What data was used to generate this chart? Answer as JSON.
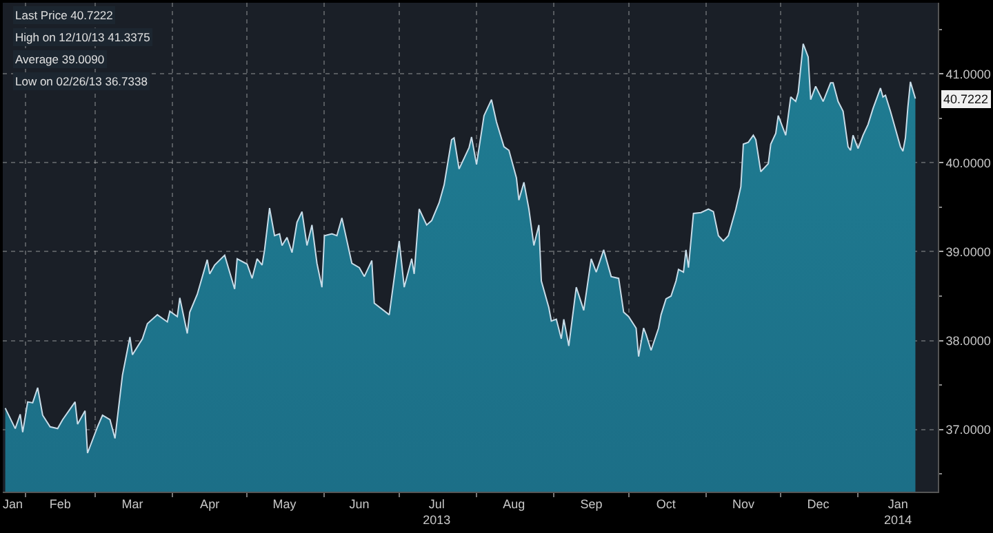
{
  "chart_data": {
    "type": "area",
    "x": [
      "2013-01-24",
      "2013-01-28",
      "2013-01-30",
      "2013-01-31",
      "2013-02-02",
      "2013-02-04",
      "2013-02-06",
      "2013-02-08",
      "2013-02-11",
      "2013-02-14",
      "2013-02-16",
      "2013-02-21",
      "2013-02-22",
      "2013-02-25",
      "2013-02-26",
      "2013-03-02",
      "2013-03-04",
      "2013-03-07",
      "2013-03-09",
      "2013-03-12",
      "2013-03-15",
      "2013-03-16",
      "2013-03-20",
      "2013-03-22",
      "2013-03-26",
      "2013-03-30",
      "2013-03-31",
      "2013-04-03",
      "2013-04-04",
      "2013-04-07",
      "2013-04-08",
      "2013-04-11",
      "2013-04-15",
      "2013-04-16",
      "2013-04-18",
      "2013-04-22",
      "2013-04-26",
      "2013-04-27",
      "2013-05-01",
      "2013-05-03",
      "2013-05-05",
      "2013-05-07",
      "2013-05-08",
      "2013-05-10",
      "2013-05-12",
      "2013-05-14",
      "2013-05-15",
      "2013-05-17",
      "2013-05-19",
      "2013-05-21",
      "2013-05-23",
      "2013-05-25",
      "2013-05-27",
      "2013-05-29",
      "2013-05-31",
      "2013-06-01",
      "2013-06-04",
      "2013-06-06",
      "2013-06-08",
      "2013-06-12",
      "2013-06-15",
      "2013-06-17",
      "2013-06-20",
      "2013-06-21",
      "2013-06-27",
      "2013-07-01",
      "2013-07-03",
      "2013-07-06",
      "2013-07-07",
      "2013-07-09",
      "2013-07-12",
      "2013-07-14",
      "2013-07-17",
      "2013-07-19",
      "2013-07-22",
      "2013-07-23",
      "2013-07-25",
      "2013-07-29",
      "2013-07-30",
      "2013-08-01",
      "2013-08-04",
      "2013-08-07",
      "2013-08-09",
      "2013-08-12",
      "2013-08-14",
      "2013-08-17",
      "2013-08-18",
      "2013-08-20",
      "2013-08-22",
      "2013-08-24",
      "2013-08-26",
      "2013-08-27",
      "2013-08-30",
      "2013-08-31",
      "2013-09-02",
      "2013-09-04",
      "2013-09-05",
      "2013-09-07",
      "2013-09-10",
      "2013-09-13",
      "2013-09-16",
      "2013-09-18",
      "2013-09-21",
      "2013-09-24",
      "2013-09-27",
      "2013-09-29",
      "2013-10-01",
      "2013-10-04",
      "2013-10-05",
      "2013-10-07",
      "2013-10-08",
      "2013-10-10",
      "2013-10-13",
      "2013-10-14",
      "2013-10-16",
      "2013-10-18",
      "2013-10-20",
      "2013-10-21",
      "2013-10-23",
      "2013-10-24",
      "2013-10-25",
      "2013-10-27",
      "2013-10-30",
      "2013-11-02",
      "2013-11-04",
      "2013-11-06",
      "2013-11-08",
      "2013-11-10",
      "2013-11-13",
      "2013-11-15",
      "2013-11-16",
      "2013-11-18",
      "2013-11-20",
      "2013-11-21",
      "2013-11-23",
      "2013-11-26",
      "2013-11-27",
      "2013-11-29",
      "2013-11-30",
      "2013-12-03",
      "2013-12-05",
      "2013-12-07",
      "2013-12-08",
      "2013-12-10",
      "2013-12-12",
      "2013-12-13",
      "2013-12-15",
      "2013-12-18",
      "2013-12-21",
      "2013-12-22",
      "2013-12-24",
      "2013-12-26",
      "2013-12-28",
      "2013-12-29",
      "2013-12-30",
      "2014-01-01",
      "2014-01-03",
      "2014-01-05",
      "2014-01-07",
      "2014-01-10",
      "2014-01-11",
      "2014-01-12",
      "2014-01-14",
      "2014-01-16",
      "2014-01-18",
      "2014-01-19",
      "2014-01-20",
      "2014-01-21",
      "2014-01-22",
      "2014-01-24"
    ],
    "series": [
      {
        "color": "#c8dce8",
        "values": [
          37.24,
          37.01,
          37.17,
          36.97,
          37.31,
          37.3,
          37.47,
          37.16,
          37.03,
          37.01,
          37.11,
          37.31,
          37.06,
          37.21,
          36.7338,
          37.03,
          37.16,
          37.11,
          36.9,
          37.61,
          38.04,
          37.84,
          38.02,
          38.19,
          38.29,
          38.21,
          38.33,
          38.27,
          38.48,
          38.08,
          38.32,
          38.52,
          38.91,
          38.75,
          38.85,
          38.96,
          38.58,
          38.92,
          38.86,
          38.7,
          38.92,
          38.85,
          39.02,
          39.49,
          39.18,
          39.2,
          39.07,
          39.16,
          38.99,
          39.33,
          39.45,
          39.07,
          39.3,
          38.87,
          38.6,
          39.18,
          39.2,
          39.18,
          39.38,
          38.87,
          38.82,
          38.72,
          38.9,
          38.42,
          38.29,
          39.12,
          38.6,
          38.92,
          38.75,
          39.48,
          39.3,
          39.35,
          39.55,
          39.75,
          40.26,
          40.28,
          39.93,
          40.17,
          40.29,
          39.98,
          40.53,
          40.71,
          40.46,
          40.18,
          40.14,
          39.83,
          39.58,
          39.78,
          39.48,
          39.07,
          39.3,
          38.67,
          38.37,
          38.22,
          38.24,
          38.02,
          38.24,
          37.94,
          38.6,
          38.34,
          38.92,
          38.77,
          39.02,
          38.72,
          38.7,
          38.32,
          38.27,
          38.14,
          37.82,
          38.14,
          38.07,
          37.89,
          38.14,
          38.29,
          38.47,
          38.5,
          38.67,
          38.8,
          38.77,
          39.02,
          38.82,
          39.43,
          39.44,
          39.48,
          39.45,
          39.18,
          39.12,
          39.18,
          39.48,
          39.73,
          40.21,
          40.23,
          40.31,
          40.26,
          39.9,
          39.99,
          40.21,
          40.33,
          40.53,
          40.31,
          40.74,
          40.69,
          40.79,
          41.3375,
          41.19,
          40.71,
          40.86,
          40.69,
          40.9,
          40.9,
          40.69,
          40.58,
          40.18,
          40.14,
          40.31,
          40.16,
          40.31,
          40.43,
          40.61,
          40.84,
          40.74,
          40.76,
          40.58,
          40.38,
          40.18,
          40.13,
          40.28,
          40.63,
          40.91,
          40.7222
        ]
      }
    ],
    "xlim": [
      "2013-01-23",
      "2014-02-02"
    ],
    "xticks": [
      {
        "value": "2013-01-27",
        "label": "Jan"
      },
      {
        "value": "2013-02-01",
        "label": null
      },
      {
        "value": "2013-02-15",
        "label": "Feb"
      },
      {
        "value": "2013-03-01",
        "label": null
      },
      {
        "value": "2013-03-16",
        "label": "Mar"
      },
      {
        "value": "2013-04-01",
        "label": null
      },
      {
        "value": "2013-04-16",
        "label": "Apr"
      },
      {
        "value": "2013-05-01",
        "label": null
      },
      {
        "value": "2013-05-16",
        "label": "May"
      },
      {
        "value": "2013-06-01",
        "label": null
      },
      {
        "value": "2013-06-15",
        "label": "Jun"
      },
      {
        "value": "2013-07-01",
        "label": null
      },
      {
        "value": "2013-07-16",
        "label": "Jul\n2013"
      },
      {
        "value": "2013-08-01",
        "label": null
      },
      {
        "value": "2013-08-16",
        "label": "Aug"
      },
      {
        "value": "2013-09-01",
        "label": null
      },
      {
        "value": "2013-09-16",
        "label": "Sep"
      },
      {
        "value": "2013-10-01",
        "label": null
      },
      {
        "value": "2013-10-16",
        "label": "Oct"
      },
      {
        "value": "2013-11-01",
        "label": null
      },
      {
        "value": "2013-11-16",
        "label": "Nov"
      },
      {
        "value": "2013-12-01",
        "label": null
      },
      {
        "value": "2013-12-16",
        "label": "Dec"
      },
      {
        "value": "2014-01-01",
        "label": null
      },
      {
        "value": "2014-01-17",
        "label": "Jan\n2014"
      }
    ],
    "ylim": [
      36.3,
      41.8
    ],
    "yticks": [
      {
        "value": 36.5,
        "label": null
      },
      {
        "value": 37,
        "label": "37.0000"
      },
      {
        "value": 37.5,
        "label": null
      },
      {
        "value": 38,
        "label": "38.0000"
      },
      {
        "value": 38.5,
        "label": null
      },
      {
        "value": 39,
        "label": "39.0000"
      },
      {
        "value": 39.5,
        "label": null
      },
      {
        "value": 40,
        "label": "40.0000"
      },
      {
        "value": 40.5,
        "label": null
      },
      {
        "value": 41,
        "label": "41.0000"
      },
      {
        "value": 41.5,
        "label": null
      }
    ],
    "grid": true,
    "annotations": [
      "Last Price 40.7222",
      "High on 12/10/13 41.3375",
      "Average 39.0090",
      "Low on 02/26/13 36.7338",
      {
        "text": "40.7222",
        "x": "2014-01-24",
        "y": 40.7222
      }
    ]
  }
}
